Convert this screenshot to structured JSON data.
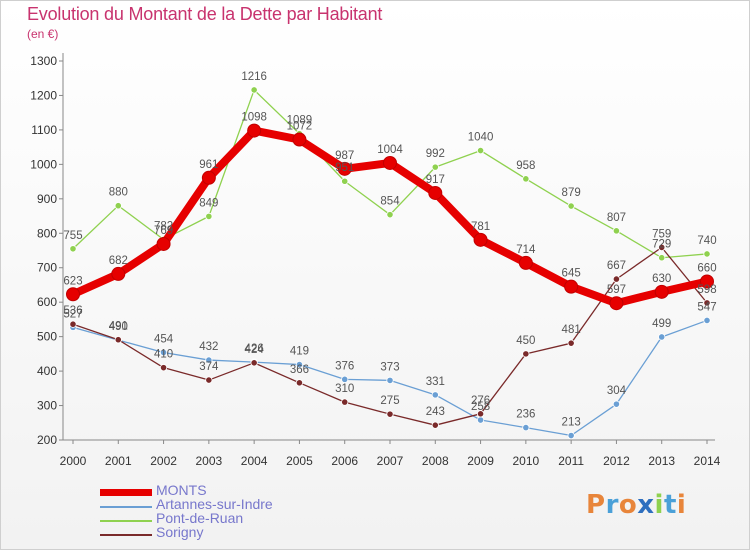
{
  "title": "Evolution du Montant de la Dette par Habitant",
  "subtitle": "(en €)",
  "chart_data": {
    "type": "line",
    "title": "Evolution du Montant de la Dette par Habitant",
    "subtitle": "(en €)",
    "x": [
      "2000",
      "2001",
      "2002",
      "2003",
      "2004",
      "2005",
      "2006",
      "2007",
      "2008",
      "2009",
      "2010",
      "2011",
      "2012",
      "2013",
      "2014"
    ],
    "ylim": [
      200,
      1300
    ],
    "yticks": [
      200,
      300,
      400,
      500,
      600,
      700,
      800,
      900,
      1000,
      1100,
      1200,
      1300
    ],
    "grid": false,
    "legend": "bottom-left",
    "series": [
      {
        "name": "MONTS",
        "color": "#e60000",
        "values": [
          623,
          682,
          769,
          961,
          1098,
          1072,
          987,
          1004,
          917,
          781,
          714,
          645,
          597,
          630,
          660
        ]
      },
      {
        "name": "Artannes-sur-Indre",
        "color": "#6a9fd4",
        "values": [
          527,
          490,
          454,
          432,
          426,
          419,
          376,
          373,
          331,
          258,
          236,
          213,
          304,
          499,
          547
        ]
      },
      {
        "name": "Pont-de-Ruan",
        "color": "#8fd14f",
        "values": [
          755,
          880,
          782,
          849,
          1216,
          1089,
          951,
          854,
          992,
          1040,
          958,
          879,
          807,
          729,
          740
        ]
      },
      {
        "name": "Sorigny",
        "color": "#7a2a2a",
        "values": [
          536,
          491,
          410,
          374,
          424,
          366,
          310,
          275,
          243,
          276,
          450,
          481,
          667,
          759,
          598
        ]
      }
    ]
  },
  "logo": {
    "text": "Proxiti",
    "colors": [
      "#e8853a",
      "#4aa0d8",
      "#e8853a",
      "#2e6fbf",
      "#8fd14f",
      "#4aa0d8",
      "#e8853a"
    ]
  }
}
